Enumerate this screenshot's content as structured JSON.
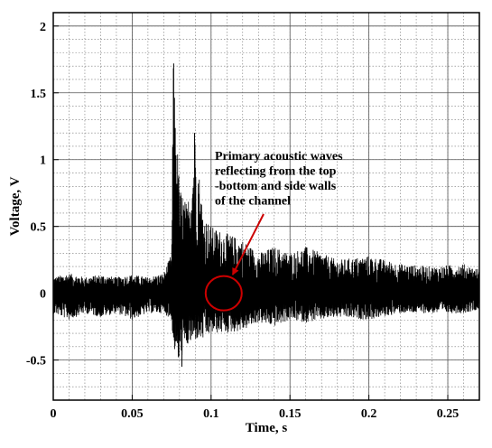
{
  "chart_data": {
    "type": "line",
    "title": "",
    "xlabel": "Time, s",
    "ylabel": "Voltage, V",
    "xlim": [
      0,
      0.27
    ],
    "ylim": [
      -0.8,
      2.1
    ],
    "x_ticks": [
      0,
      0.05,
      0.1,
      0.15,
      0.2,
      0.25
    ],
    "x_tick_labels": [
      "0",
      "0.05",
      "0.1",
      "0.15",
      "0.2",
      "0.25"
    ],
    "y_ticks": [
      -0.5,
      0,
      0.5,
      1,
      1.5,
      2
    ],
    "y_tick_labels": [
      "-0.5",
      "0",
      "0.5",
      "1",
      "1.5",
      "2"
    ],
    "grid": true,
    "grid_style": "dotted",
    "legend": "none",
    "series": [
      {
        "color": "#000000",
        "description": "noisy voltage signal; baseline noise about ±0.15 V for t<0.075 s; burst at t≈0.075 s with peaks to ~1.72 V and ~1.2 V and dip to ~-0.55 V; decaying oscillation afterwards",
        "x": [
          0.0,
          0.01,
          0.02,
          0.03,
          0.04,
          0.05,
          0.06,
          0.07,
          0.075,
          0.076,
          0.08,
          0.082,
          0.085,
          0.09,
          0.095,
          0.1,
          0.11,
          0.12,
          0.13,
          0.14,
          0.15,
          0.16,
          0.18,
          0.2,
          0.22,
          0.24,
          0.26,
          0.27
        ],
        "y_envelope_upper": [
          0.12,
          0.15,
          0.12,
          0.14,
          0.12,
          0.14,
          0.12,
          0.15,
          0.3,
          1.72,
          0.8,
          0.75,
          0.65,
          1.2,
          0.6,
          0.5,
          0.45,
          0.4,
          0.3,
          0.35,
          0.3,
          0.35,
          0.25,
          0.28,
          0.22,
          0.2,
          0.22,
          0.18
        ],
        "y_envelope_lower": [
          -0.15,
          -0.2,
          -0.15,
          -0.18,
          -0.15,
          -0.2,
          -0.15,
          -0.15,
          -0.2,
          -0.4,
          -0.55,
          -0.45,
          -0.4,
          -0.35,
          -0.35,
          -0.3,
          -0.3,
          -0.28,
          -0.22,
          -0.25,
          -0.2,
          -0.22,
          -0.18,
          -0.2,
          -0.15,
          -0.15,
          -0.15,
          -0.12
        ]
      }
    ],
    "annotations": [
      {
        "text_lines": [
          "Primary acoustic waves",
          "reflecting from the top",
          "-bottom and side walls",
          "of the channel"
        ],
        "arrow_to": [
          0.112,
          0.18
        ],
        "circle_center": [
          0.108,
          0.0
        ],
        "color": "#cc0000"
      }
    ]
  }
}
